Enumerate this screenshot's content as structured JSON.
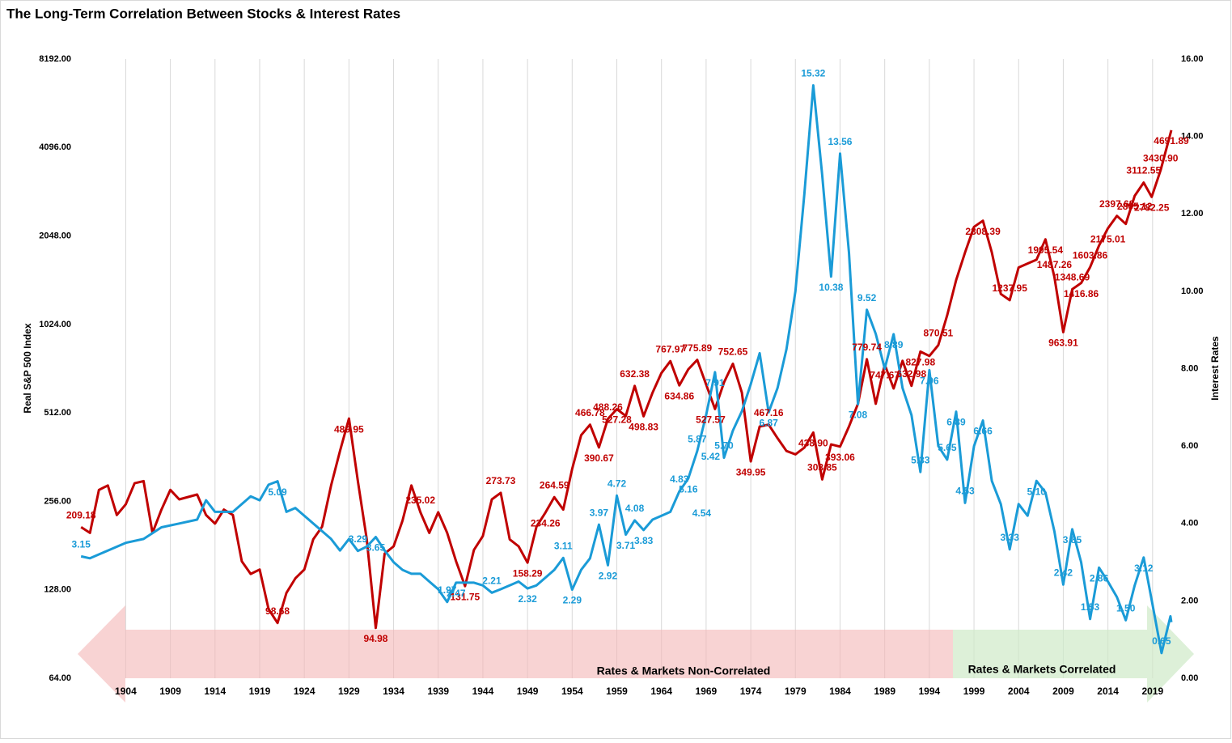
{
  "chart_data": {
    "type": "line",
    "title": "The Long-Term Correlation Between Stocks & Interest Rates",
    "ylabel": "Real S&P 500 Index",
    "y2label": "Interest Rates",
    "xlim": [
      1898.8,
      2021.1
    ],
    "xticks": [
      1904,
      1909,
      1914,
      1919,
      1924,
      1929,
      1934,
      1939,
      1944,
      1949,
      1954,
      1959,
      1964,
      1969,
      1974,
      1979,
      1984,
      1989,
      1994,
      1999,
      2004,
      2009,
      2014,
      2019
    ],
    "ylog": 2,
    "ylim": [
      64,
      8192
    ],
    "yticks": [
      {
        "value": 64,
        "label": "64.00"
      },
      {
        "value": 128,
        "label": "128.00"
      },
      {
        "value": 256,
        "label": "256.00"
      },
      {
        "value": 512,
        "label": "512.00"
      },
      {
        "value": 1024,
        "label": "1024.00"
      },
      {
        "value": 2048,
        "label": "2048.00"
      },
      {
        "value": 4096,
        "label": "4096.00"
      },
      {
        "value": 8192,
        "label": "8192.00"
      }
    ],
    "y2lim": [
      0,
      16
    ],
    "y2ticks": [
      {
        "value": 0,
        "label": "0.00"
      },
      {
        "value": 2,
        "label": "2.00"
      },
      {
        "value": 4,
        "label": "4.00"
      },
      {
        "value": 6,
        "label": "6.00"
      },
      {
        "value": 8,
        "label": "8.00"
      },
      {
        "value": 10,
        "label": "10.00"
      },
      {
        "value": 12,
        "label": "12.00"
      },
      {
        "value": 14,
        "label": "14.00"
      },
      {
        "value": 16,
        "label": "16.00"
      }
    ],
    "grid": true,
    "series": [
      {
        "color": "#c00000",
        "axis": "y",
        "x": [
          1899,
          1900,
          1901,
          1902,
          1903,
          1904,
          1905,
          1906,
          1907,
          1908,
          1909,
          1910,
          1911,
          1912,
          1913,
          1914,
          1915,
          1916,
          1917,
          1918,
          1919,
          1920,
          1921,
          1922,
          1923,
          1924,
          1925,
          1926,
          1927,
          1928,
          1929,
          1930,
          1931,
          1932,
          1933,
          1934,
          1935,
          1936,
          1937,
          1938,
          1939,
          1940,
          1941,
          1942,
          1943,
          1944,
          1945,
          1946,
          1947,
          1948,
          1949,
          1950,
          1951,
          1952,
          1953,
          1954,
          1955,
          1956,
          1957,
          1958,
          1959,
          1960,
          1961,
          1962,
          1963,
          1964,
          1965,
          1966,
          1967,
          1968,
          1969,
          1970,
          1971,
          1972,
          1973,
          1974,
          1975,
          1976,
          1977,
          1978,
          1979,
          1980,
          1981,
          1982,
          1983,
          1984,
          1985,
          1986,
          1987,
          1988,
          1989,
          1990,
          1991,
          1992,
          1993,
          1994,
          1995,
          1996,
          1997,
          1998,
          1999,
          2000,
          2001,
          2002,
          2003,
          2004,
          2005,
          2006,
          2007,
          2008,
          2009,
          2010,
          2011,
          2012,
          2013,
          2014,
          2015,
          2016,
          2017,
          2018,
          2018.9,
          2019.9,
          2021.1
        ],
        "values": [
          209.18,
          200,
          280,
          290,
          230,
          250,
          295,
          300,
          200,
          240,
          280,
          260,
          265,
          270,
          230,
          215,
          240,
          230,
          160,
          145,
          150,
          110,
          98.68,
          125,
          140,
          150,
          190,
          210,
          290,
          380,
          489.95,
          300,
          190,
          94.98,
          170,
          180,
          220,
          290,
          235.02,
          200,
          235,
          200,
          160,
          131.75,
          175,
          195,
          260,
          273.73,
          190,
          180,
          158.29,
          210,
          234.26,
          264.59,
          240,
          330,
          430,
          466.78,
          390.67,
          488.26,
          527.28,
          500,
          632.38,
          498.83,
          600,
          700,
          767.97,
          634.86,
          720,
          775.89,
          640,
          527.57,
          650,
          752.65,
          600,
          349.95,
          460,
          467.16,
          420,
          380,
          370,
          390,
          438.9,
          303.85,
          400,
          393.06,
          460,
          550,
          779.74,
          550,
          747.67,
          620,
          770,
          632.98,
          827.98,
          800,
          870.51,
          1100,
          1450,
          1800,
          2200,
          2308.39,
          1800,
          1300,
          1237.95,
          1600,
          1650,
          1700,
          1995.54,
          1487.26,
          963.91,
          1348.69,
          1416.86,
          1603.86,
          1900,
          2175.01,
          2397.68,
          2250,
          2805.12,
          3112.55,
          2782.25,
          3430.9,
          4691.89
        ],
        "annotations": [
          {
            "x": 1899,
            "value": 209.18
          },
          {
            "x": 1929,
            "value": 489.95
          },
          {
            "x": 1921,
            "value": 98.68
          },
          {
            "x": 1932,
            "value": 94.98
          },
          {
            "x": 1937,
            "value": 235.02
          },
          {
            "x": 1942,
            "value": 131.75
          },
          {
            "x": 1946,
            "value": 273.73
          },
          {
            "x": 1949,
            "value": 158.29
          },
          {
            "x": 1952,
            "value": 264.59
          },
          {
            "x": 1951,
            "value": 234.26
          },
          {
            "x": 1956,
            "value": 466.78
          },
          {
            "x": 1957,
            "value": 390.67
          },
          {
            "x": 1958,
            "value": 488.26
          },
          {
            "x": 1959,
            "value": 527.28
          },
          {
            "x": 1961,
            "value": 632.38
          },
          {
            "x": 1962,
            "value": 498.83
          },
          {
            "x": 1965,
            "value": 767.97
          },
          {
            "x": 1966,
            "value": 634.86
          },
          {
            "x": 1968,
            "value": 775.89
          },
          {
            "x": 1969.5,
            "value": 527.57
          },
          {
            "x": 1972,
            "value": 752.65
          },
          {
            "x": 1974,
            "value": 349.95
          },
          {
            "x": 1976,
            "value": 467.16
          },
          {
            "x": 1981,
            "value": 438.9,
            "label": "438.90"
          },
          {
            "x": 1982,
            "value": 303.85
          },
          {
            "x": 1984,
            "value": 393.06
          },
          {
            "x": 1987,
            "value": 779.74
          },
          {
            "x": 1989,
            "value": 747.67
          },
          {
            "x": 1992,
            "value": 632.98
          },
          {
            "x": 1993,
            "value": 827.98
          },
          {
            "x": 1995,
            "value": 870.51
          },
          {
            "x": 2000,
            "value": 2308.39
          },
          {
            "x": 2003,
            "value": 1237.95
          },
          {
            "x": 2007,
            "value": 1995.54
          },
          {
            "x": 2008,
            "value": 1487.26
          },
          {
            "x": 2009,
            "value": 963.91
          },
          {
            "x": 2010,
            "value": 1348.69
          },
          {
            "x": 2011,
            "value": 1416.86
          },
          {
            "x": 2012,
            "value": 1603.86
          },
          {
            "x": 2014,
            "value": 2175.01
          },
          {
            "x": 2015,
            "value": 2397.68
          },
          {
            "x": 2017,
            "value": 2805.12
          },
          {
            "x": 2018,
            "value": 3112.55
          },
          {
            "x": 2018.9,
            "value": 2782.25
          },
          {
            "x": 2019.9,
            "value": 3430.9,
            "label": "3430.90"
          },
          {
            "x": 2021.1,
            "value": 4691.89
          }
        ]
      },
      {
        "color": "#1a9bd7",
        "axis": "y2",
        "x": [
          1899,
          1900,
          1902,
          1904,
          1906,
          1908,
          1910,
          1912,
          1913,
          1914,
          1916,
          1918,
          1919,
          1920,
          1921,
          1922,
          1923,
          1925,
          1927,
          1928,
          1929,
          1930,
          1931,
          1932,
          1933,
          1934,
          1935,
          1936,
          1937,
          1938,
          1939,
          1940,
          1941,
          1942,
          1943,
          1944,
          1945,
          1946,
          1947,
          1948,
          1949,
          1950,
          1951,
          1952,
          1953,
          1954,
          1955,
          1956,
          1957,
          1958,
          1959,
          1960,
          1961,
          1962,
          1963,
          1964,
          1965,
          1966,
          1967,
          1968,
          1969,
          1970,
          1971,
          1972,
          1973,
          1974,
          1975,
          1976,
          1977,
          1978,
          1979,
          1980,
          1981,
          1982,
          1983,
          1984,
          1985,
          1986,
          1987,
          1988,
          1989,
          1990,
          1991,
          1992,
          1993,
          1994,
          1995,
          1996,
          1997,
          1998,
          1999,
          2000,
          2001,
          2002,
          2003,
          2004,
          2005,
          2006,
          2007,
          2008,
          2009,
          2010,
          2011,
          2012,
          2013,
          2014,
          2015,
          2016,
          2017,
          2018,
          2019,
          2020,
          2021,
          2021.1
        ],
        "values": [
          3.15,
          3.1,
          3.3,
          3.5,
          3.6,
          3.9,
          4,
          4.1,
          4.6,
          4.3,
          4.3,
          4.7,
          4.6,
          5,
          5.09,
          4.3,
          4.4,
          4,
          3.6,
          3.3,
          3.6,
          3.29,
          3.4,
          3.65,
          3.3,
          3,
          2.8,
          2.7,
          2.7,
          2.5,
          2.3,
          1.97,
          2.47,
          2.47,
          2.47,
          2.4,
          2.21,
          2.3,
          2.4,
          2.5,
          2.32,
          2.4,
          2.6,
          2.8,
          3.11,
          2.29,
          2.8,
          3.1,
          3.97,
          2.92,
          4.72,
          3.71,
          4.08,
          3.83,
          4.1,
          4.2,
          4.3,
          4.83,
          5.16,
          5.87,
          6.8,
          7.91,
          5.7,
          6.4,
          6.9,
          7.6,
          8.4,
          6.87,
          7.5,
          8.5,
          10,
          12.5,
          15.32,
          13,
          10.38,
          13.56,
          11,
          7.08,
          9.52,
          8.9,
          8,
          8.89,
          7.5,
          6.8,
          5.33,
          7.96,
          6,
          5.65,
          6.89,
          4.53,
          6,
          6.66,
          5.1,
          4.5,
          3.33,
          4.5,
          4.2,
          5.1,
          4.8,
          3.8,
          2.42,
          3.85,
          3,
          1.53,
          2.86,
          2.5,
          2.1,
          1.5,
          2.4,
          3.12,
          1.9,
          0.65,
          1.6,
          1.45
        ],
        "annotations": [
          {
            "x": 1899,
            "value": 3.15
          },
          {
            "x": 1921,
            "value": 5.09
          },
          {
            "x": 1930,
            "value": 3.29
          },
          {
            "x": 1932,
            "value": 3.65
          },
          {
            "x": 1940,
            "value": 1.97
          },
          {
            "x": 1941,
            "value": 2.47
          },
          {
            "x": 1945,
            "value": 2.21
          },
          {
            "x": 1949,
            "value": 2.32
          },
          {
            "x": 1953,
            "value": 3.11
          },
          {
            "x": 1954,
            "value": 2.29
          },
          {
            "x": 1957,
            "value": 3.97
          },
          {
            "x": 1958,
            "value": 2.92
          },
          {
            "x": 1959,
            "value": 4.72
          },
          {
            "x": 1960,
            "value": 3.71
          },
          {
            "x": 1961,
            "value": 4.08
          },
          {
            "x": 1962,
            "value": 3.83
          },
          {
            "x": 1966,
            "value": 4.83
          },
          {
            "x": 1967,
            "value": 5.16
          },
          {
            "x": 1968,
            "value": 5.87
          },
          {
            "x": 1968.5,
            "value": 4.54
          },
          {
            "x": 1969.5,
            "value": 5.42
          },
          {
            "x": 1970,
            "value": 7.91
          },
          {
            "x": 1971,
            "value": 5.7,
            "label": "5.70"
          },
          {
            "x": 1976,
            "value": 6.87
          },
          {
            "x": 1981,
            "value": 15.32
          },
          {
            "x": 1983,
            "value": 10.38
          },
          {
            "x": 1984,
            "value": 13.56
          },
          {
            "x": 1986,
            "value": 7.08
          },
          {
            "x": 1987,
            "value": 9.52
          },
          {
            "x": 1990,
            "value": 8.89
          },
          {
            "x": 1993,
            "value": 5.33
          },
          {
            "x": 1994,
            "value": 7.96
          },
          {
            "x": 1996,
            "value": 5.65
          },
          {
            "x": 1997,
            "value": 6.89
          },
          {
            "x": 1998,
            "value": 4.53
          },
          {
            "x": 2000,
            "value": 6.66
          },
          {
            "x": 2003,
            "value": 3.33
          },
          {
            "x": 2006,
            "value": 5.1,
            "label": "5.10"
          },
          {
            "x": 2009,
            "value": 2.42
          },
          {
            "x": 2010,
            "value": 3.85
          },
          {
            "x": 2012,
            "value": 1.53
          },
          {
            "x": 2013,
            "value": 2.86
          },
          {
            "x": 2016,
            "value": 1.5,
            "label": "1.50"
          },
          {
            "x": 2018,
            "value": 3.12
          },
          {
            "x": 2020,
            "value": 0.65
          }
        ]
      }
    ],
    "regions": [
      {
        "label": "Rates & Markets Non-Correlated",
        "color": "#f4b6b6"
      },
      {
        "label": "Rates & Markets Correlated",
        "color": "#cfeac8"
      }
    ]
  }
}
